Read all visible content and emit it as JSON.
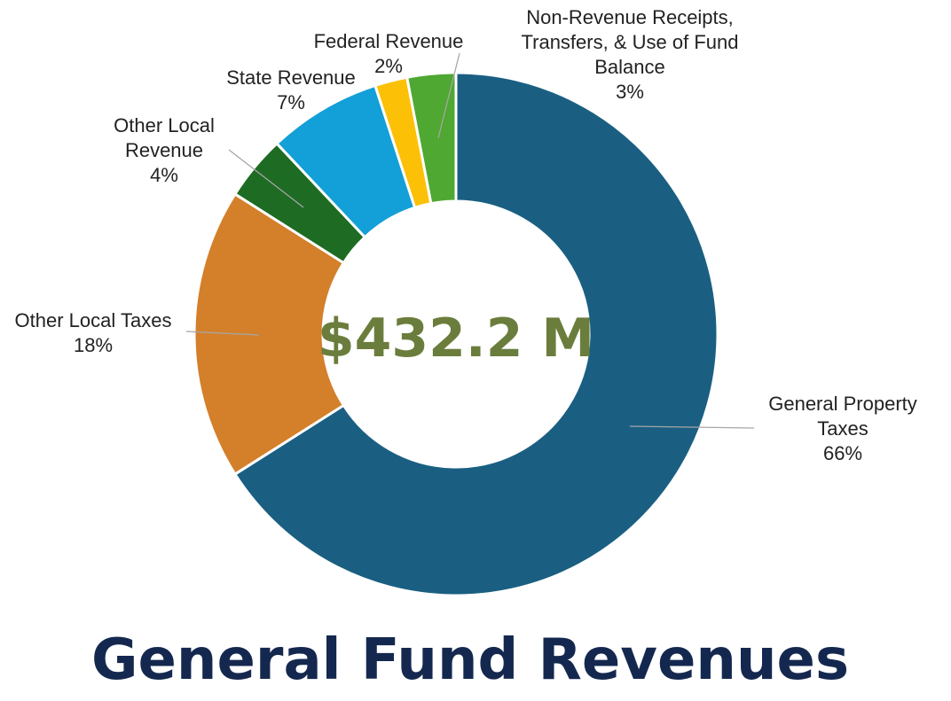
{
  "chart_data": {
    "type": "pie",
    "title": "General Fund Revenues",
    "center_label": "$432.2 M",
    "slices": [
      {
        "name": "General Property Taxes",
        "label_lines": [
          "General Property",
          "Taxes"
        ],
        "value": 66,
        "value_label": "66%",
        "color": "#1a5f82"
      },
      {
        "name": "Other Local Taxes",
        "label_lines": [
          "Other Local Taxes"
        ],
        "value": 18,
        "value_label": "18%",
        "color": "#d47f2a"
      },
      {
        "name": "Other Local Revenue",
        "label_lines": [
          "Other Local",
          "Revenue"
        ],
        "value": 4,
        "value_label": "4%",
        "color": "#1e6b24"
      },
      {
        "name": "State Revenue",
        "label_lines": [
          "State Revenue"
        ],
        "value": 7,
        "value_label": "7%",
        "color": "#139fd8"
      },
      {
        "name": "Federal Revenue",
        "label_lines": [
          "Federal Revenue"
        ],
        "value": 2,
        "value_label": "2%",
        "color": "#fcc007"
      },
      {
        "name": "Non-Revenue Receipts, Transfers, & Use of Fund Balance",
        "label_lines": [
          "Non-Revenue Receipts,",
          "Transfers, & Use of Fund",
          "Balance"
        ],
        "value": 3,
        "value_label": "3%",
        "color": "#4fa831"
      }
    ]
  },
  "colors": {
    "title": "#14284f",
    "center_total": "#6b7d3c",
    "leader_line": "#a6a6a6"
  }
}
